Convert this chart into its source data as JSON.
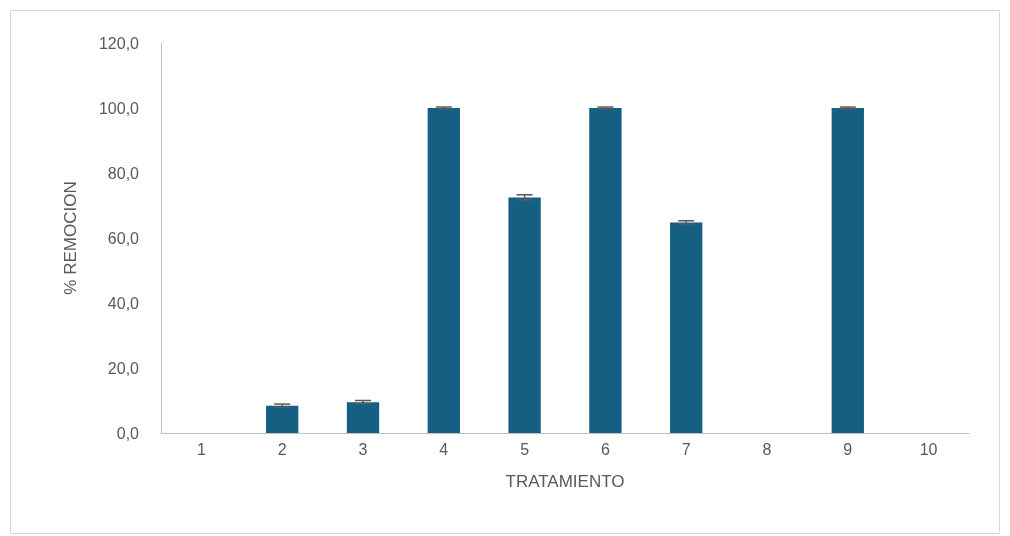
{
  "chart_data": {
    "type": "bar",
    "xlabel": "TRATAMIENTO",
    "ylabel": "% REMOCION",
    "categories": [
      "1",
      "2",
      "3",
      "4",
      "5",
      "6",
      "7",
      "8",
      "9",
      "10"
    ],
    "values": [
      0,
      8.4,
      9.5,
      100,
      72.5,
      100,
      64.8,
      0,
      100,
      0
    ],
    "errors": [
      null,
      0.5,
      0.5,
      0.3,
      0.8,
      0.3,
      0.5,
      null,
      0.3,
      null
    ],
    "color": "#156082",
    "ylim": [
      0,
      120
    ],
    "yticks": [
      {
        "value": 0,
        "label": "0,0"
      },
      {
        "value": 20,
        "label": "20,0"
      },
      {
        "value": 40,
        "label": "40,0"
      },
      {
        "value": 60,
        "label": "60,0"
      },
      {
        "value": 80,
        "label": "80,0"
      },
      {
        "value": 100,
        "label": "100,0"
      },
      {
        "value": 120,
        "label": "120,0"
      }
    ],
    "grid": false
  }
}
